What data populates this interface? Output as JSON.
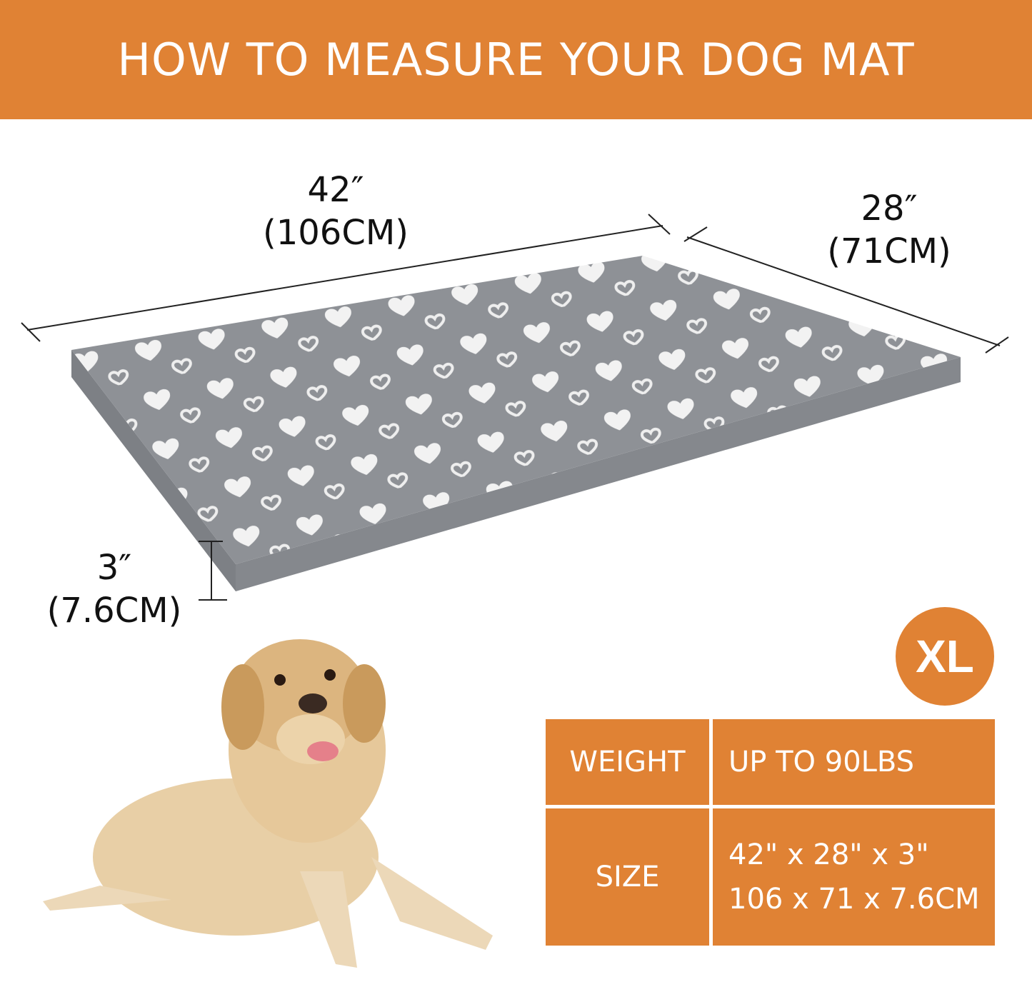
{
  "header": {
    "title": "HOW TO MEASURE YOUR DOG MAT"
  },
  "dimensions": {
    "length": {
      "inches": "42″",
      "cm": "(106CM)"
    },
    "width": {
      "inches": "28″",
      "cm": "(71CM)"
    },
    "height": {
      "inches": "3″",
      "cm": "(7.6CM)"
    }
  },
  "size_badge": "XL",
  "spec_table": {
    "rows": [
      {
        "label": "WEIGHT",
        "values": [
          "UP TO 90LBS"
        ]
      },
      {
        "label": "SIZE",
        "values": [
          "42\" x 28\" x 3\"",
          "106 x 71 x 7.6CM"
        ]
      }
    ]
  },
  "colors": {
    "accent": "#e08234",
    "mat": "#8e9196",
    "hearts": "#f4f4f4"
  }
}
